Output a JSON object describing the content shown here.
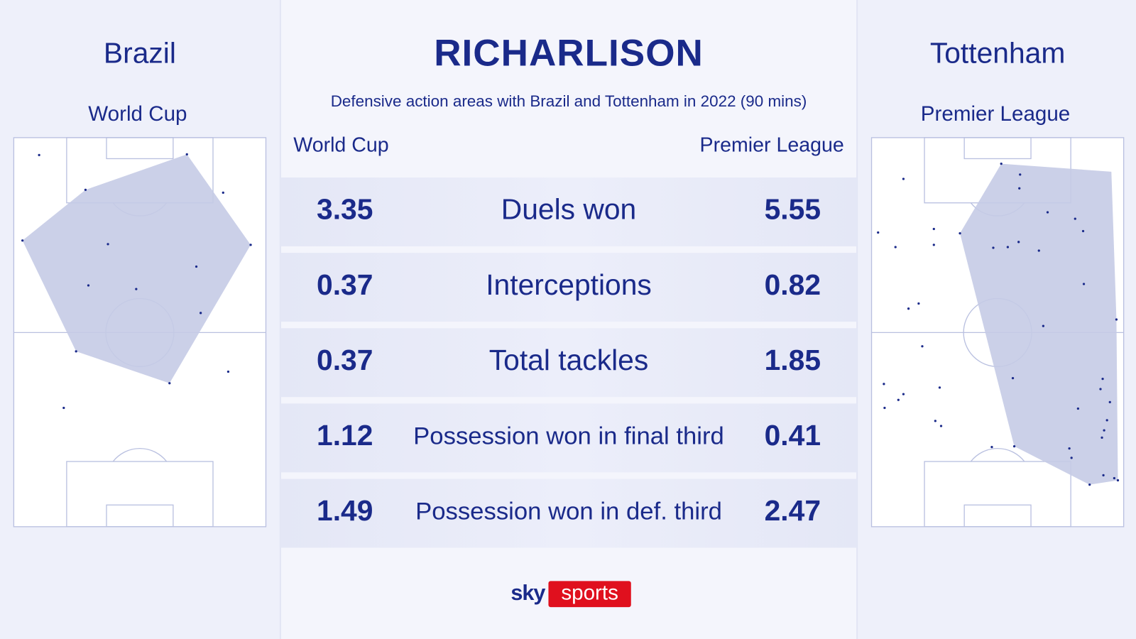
{
  "left": {
    "team": "Brazil",
    "competition": "World Cup"
  },
  "right": {
    "team": "Tottenham",
    "competition": "Premier League"
  },
  "header": {
    "title": "RICHARLISON",
    "subtitle": "Defensive action areas with Brazil and Tottenham in 2022 (90 mins)"
  },
  "table": {
    "columns": [
      "World Cup",
      "Premier League"
    ],
    "rows": [
      [
        3.35,
        "Duels won",
        5.55
      ],
      [
        0.37,
        "Interceptions",
        0.82
      ],
      [
        0.37,
        "Total tackles",
        1.85
      ],
      [
        1.12,
        "Possession won in final third",
        0.41
      ],
      [
        1.49,
        "Possession won in def. third",
        2.47
      ]
    ]
  },
  "logo": {
    "brand": "sky",
    "product": "sports"
  }
}
